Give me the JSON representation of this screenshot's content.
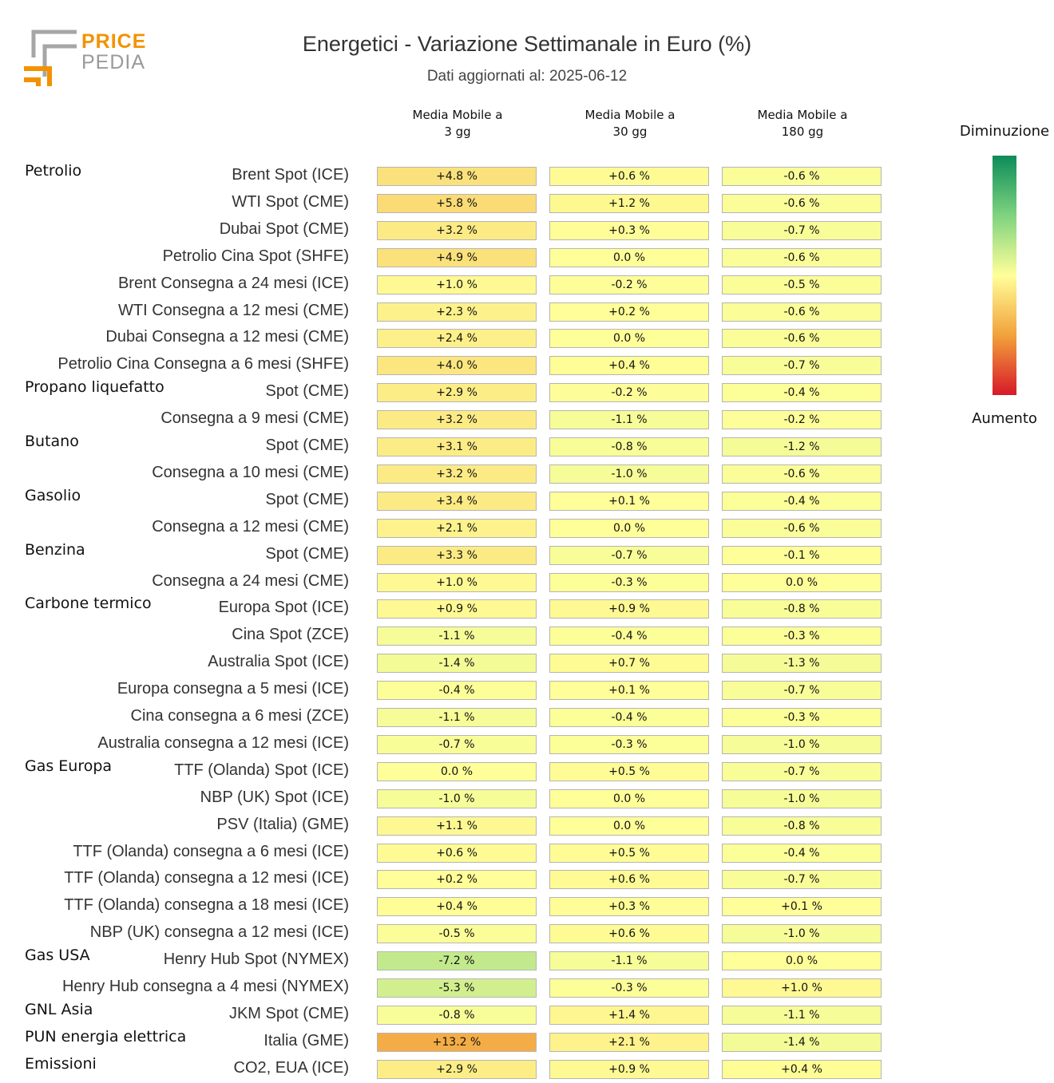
{
  "logo": {
    "word1": "PRICE",
    "word2": "PEDIA"
  },
  "chart_data": {
    "type": "heatmap",
    "title": "Energetici - Variazione Settimanale in Euro (%)",
    "subtitle": "Dati aggiornati al: 2025-06-12",
    "columns": [
      "Media Mobile a 3 gg",
      "Media Mobile a 30 gg",
      "Media Mobile a 180 gg"
    ],
    "columns_lines": [
      [
        "Media Mobile a",
        "3 gg"
      ],
      [
        "Media Mobile a",
        "30 gg"
      ],
      [
        "Media Mobile a",
        "180 gg"
      ]
    ],
    "unit": "%",
    "legend": {
      "top": "Diminuzione",
      "bottom": "Aumento",
      "colors": [
        "#0b8c5a",
        "#7fd37f",
        "#ffff99",
        "#f2a23b",
        "#d7192a"
      ]
    },
    "rows": [
      {
        "group": "Petrolio",
        "label": "Brent Spot (ICE)",
        "values": [
          4.8,
          0.6,
          -0.6
        ]
      },
      {
        "group": "",
        "label": "WTI Spot (CME)",
        "values": [
          5.8,
          1.2,
          -0.6
        ]
      },
      {
        "group": "",
        "label": "Dubai Spot (CME)",
        "values": [
          3.2,
          0.3,
          -0.7
        ]
      },
      {
        "group": "",
        "label": "Petrolio Cina Spot (SHFE)",
        "values": [
          4.9,
          0.0,
          -0.6
        ]
      },
      {
        "group": "",
        "label": "Brent Consegna a 24 mesi (ICE)",
        "values": [
          1.0,
          -0.2,
          -0.5
        ]
      },
      {
        "group": "",
        "label": "WTI Consegna a 12 mesi (CME)",
        "values": [
          2.3,
          0.2,
          -0.6
        ]
      },
      {
        "group": "",
        "label": "Dubai Consegna a 12 mesi (CME)",
        "values": [
          2.4,
          0.0,
          -0.6
        ]
      },
      {
        "group": "",
        "label": "Petrolio Cina Consegna a 6 mesi (SHFE)",
        "values": [
          4.0,
          0.4,
          -0.7
        ]
      },
      {
        "group": "Propano liquefatto",
        "label": "Spot (CME)",
        "values": [
          2.9,
          -0.2,
          -0.4
        ]
      },
      {
        "group": "",
        "label": "Consegna a 9 mesi (CME)",
        "values": [
          3.2,
          -1.1,
          -0.2
        ]
      },
      {
        "group": "Butano",
        "label": "Spot (CME)",
        "values": [
          3.1,
          -0.8,
          -1.2
        ]
      },
      {
        "group": "",
        "label": "Consegna a 10 mesi (CME)",
        "values": [
          3.2,
          -1.0,
          -0.6
        ]
      },
      {
        "group": "Gasolio",
        "label": "Spot (CME)",
        "values": [
          3.4,
          0.1,
          -0.4
        ]
      },
      {
        "group": "",
        "label": "Consegna a 12 mesi (CME)",
        "values": [
          2.1,
          0.0,
          -0.6
        ]
      },
      {
        "group": "Benzina",
        "label": "Spot (CME)",
        "values": [
          3.3,
          -0.7,
          -0.1
        ]
      },
      {
        "group": "",
        "label": "Consegna a 24 mesi (CME)",
        "values": [
          1.0,
          -0.3,
          0.0
        ]
      },
      {
        "group": "Carbone termico",
        "label": "Europa Spot (ICE)",
        "values": [
          0.9,
          0.9,
          -0.8
        ]
      },
      {
        "group": "",
        "label": "Cina Spot (ZCE)",
        "values": [
          -1.1,
          -0.4,
          -0.3
        ]
      },
      {
        "group": "",
        "label": "Australia Spot (ICE)",
        "values": [
          -1.4,
          0.7,
          -1.3
        ]
      },
      {
        "group": "",
        "label": "Europa consegna a 5 mesi (ICE)",
        "values": [
          -0.4,
          0.1,
          -0.7
        ]
      },
      {
        "group": "",
        "label": "Cina consegna a 6 mesi (ZCE)",
        "values": [
          -1.1,
          -0.4,
          -0.3
        ]
      },
      {
        "group": "",
        "label": "Australia consegna a 12 mesi (ICE)",
        "values": [
          -0.7,
          -0.3,
          -1.0
        ]
      },
      {
        "group": "Gas Europa",
        "label": "TTF (Olanda) Spot (ICE)",
        "values": [
          0.0,
          0.5,
          -0.7
        ]
      },
      {
        "group": "",
        "label": "NBP (UK) Spot (ICE)",
        "values": [
          -1.0,
          0.0,
          -1.0
        ]
      },
      {
        "group": "",
        "label": "PSV (Italia) (GME)",
        "values": [
          1.1,
          0.0,
          -0.8
        ]
      },
      {
        "group": "",
        "label": "TTF (Olanda) consegna a 6 mesi (ICE)",
        "values": [
          0.6,
          0.5,
          -0.4
        ]
      },
      {
        "group": "",
        "label": "TTF (Olanda) consegna a 12 mesi (ICE)",
        "values": [
          0.2,
          0.6,
          -0.7
        ]
      },
      {
        "group": "",
        "label": "TTF (Olanda) consegna a 18 mesi (ICE)",
        "values": [
          0.4,
          0.3,
          0.1
        ]
      },
      {
        "group": "",
        "label": "NBP (UK) consegna a 12 mesi (ICE)",
        "values": [
          -0.5,
          0.6,
          -1.0
        ]
      },
      {
        "group": "Gas USA",
        "label": "Henry Hub Spot (NYMEX)",
        "values": [
          -7.2,
          -1.1,
          0.0
        ]
      },
      {
        "group": "",
        "label": "Henry Hub consegna a 4 mesi (NYMEX)",
        "values": [
          -5.3,
          -0.3,
          1.0
        ]
      },
      {
        "group": "GNL Asia",
        "label": "JKM Spot (CME)",
        "values": [
          -0.8,
          1.4,
          -1.1
        ]
      },
      {
        "group": "PUN energia elettrica",
        "label": "Italia (GME)",
        "values": [
          13.2,
          2.1,
          -1.4
        ]
      },
      {
        "group": "Emissioni",
        "label": "CO2, EUA (ICE)",
        "values": [
          2.9,
          0.9,
          0.4
        ]
      }
    ]
  }
}
